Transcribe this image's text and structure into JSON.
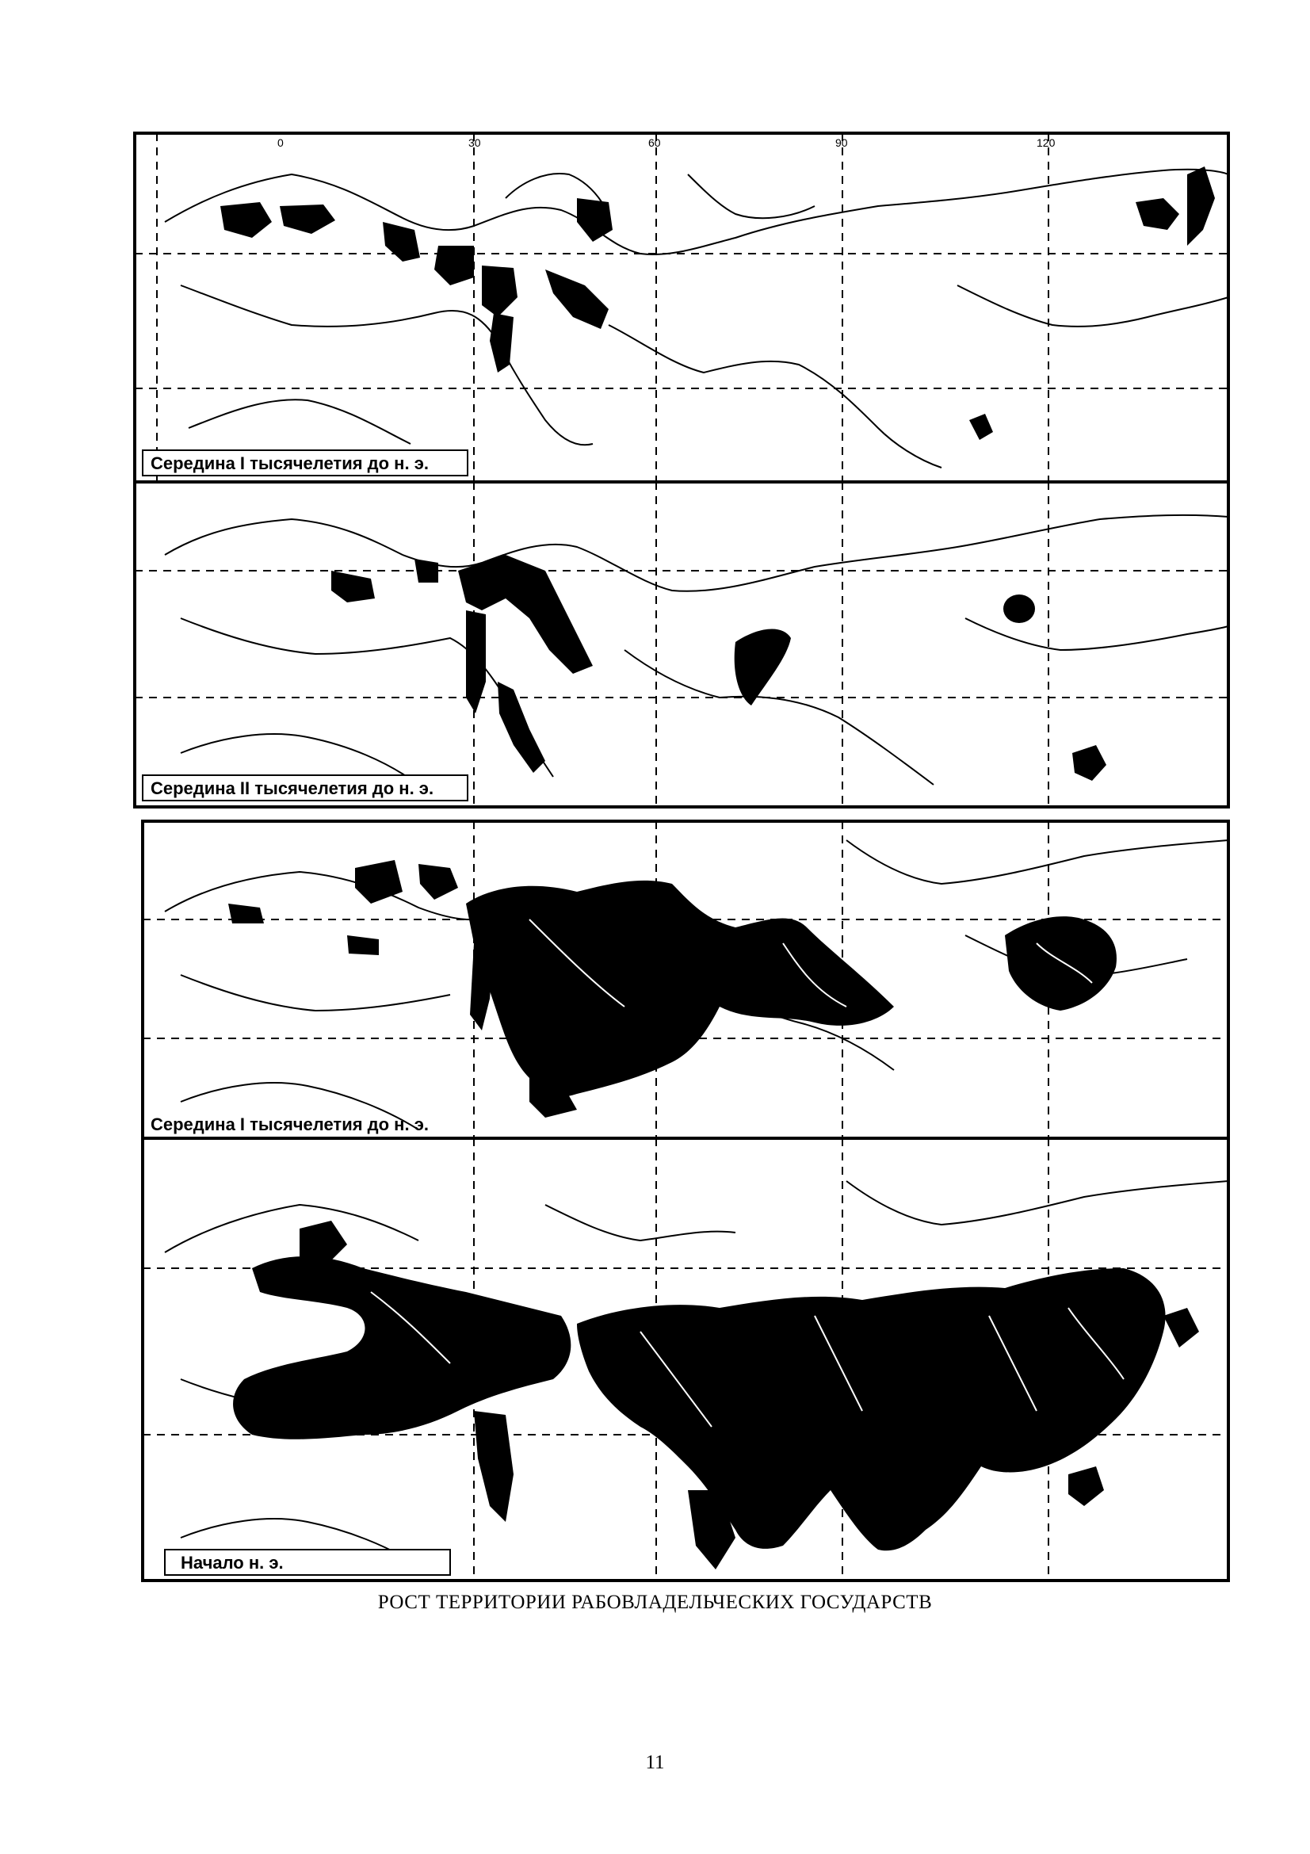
{
  "figure": {
    "caption": "РОСТ ТЕРРИТОРИИ РАБОВЛАДЕЛЬЧЕСКИХ ГОСУДАРСТВ",
    "panels": [
      {
        "label": "Середина I тысячелетия до н. э."
      },
      {
        "label": "Середина II тысячелетия до н. э."
      },
      {
        "label": "Середина I тысячелетия до н. э."
      },
      {
        "label": "Начало н. э."
      }
    ],
    "longitude_ticks": [
      "0",
      "30",
      "60",
      "90",
      "120"
    ]
  },
  "page": {
    "number": "11"
  },
  "colors": {
    "ink": "#000000",
    "paper": "#ffffff"
  }
}
